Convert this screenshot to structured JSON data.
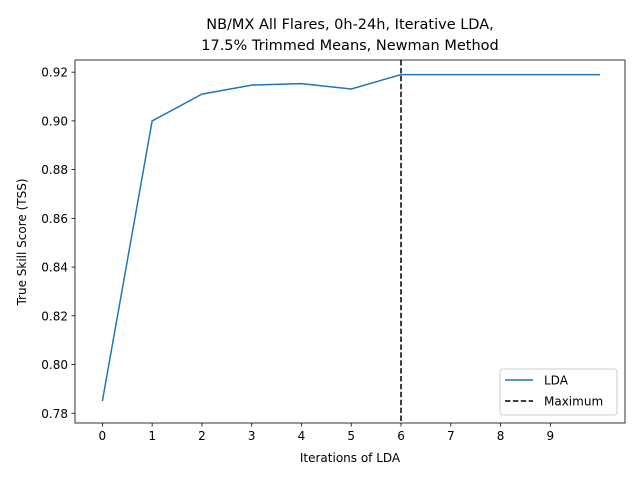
{
  "chart_data": {
    "type": "line",
    "title_lines": [
      "NB/MX All Flares, 0h-24h, Iterative LDA,",
      "17.5% Trimmed Means, Newman Method"
    ],
    "xlabel": "Iterations of LDA",
    "ylabel": "True Skill Score (TSS)",
    "xlim": [
      -0.55,
      10.5
    ],
    "ylim": [
      0.776,
      0.925
    ],
    "x_ticks": [
      0,
      1,
      2,
      3,
      4,
      5,
      6,
      7,
      8,
      9
    ],
    "y_ticks": [
      0.78,
      0.8,
      0.82,
      0.84,
      0.86,
      0.88,
      0.9,
      0.92
    ],
    "y_tick_labels": [
      "0.78",
      "0.80",
      "0.82",
      "0.84",
      "0.86",
      "0.88",
      "0.90",
      "0.92"
    ],
    "series": [
      {
        "name": "LDA",
        "color": "#1f77b4",
        "style": "solid",
        "x": [
          0,
          1,
          2,
          3,
          4,
          5,
          6,
          7,
          8,
          9,
          10
        ],
        "y": [
          0.785,
          0.9,
          0.911,
          0.9147,
          0.9153,
          0.9131,
          0.919,
          0.919,
          0.919,
          0.919,
          0.919
        ]
      }
    ],
    "vlines": [
      {
        "name": "Maximum",
        "x": 6,
        "color": "#000000",
        "style": "dashed"
      }
    ],
    "legend": {
      "placement": "lower-right",
      "entries": [
        {
          "label": "LDA",
          "color": "#1f77b4",
          "style": "solid"
        },
        {
          "label": "Maximum",
          "color": "#000000",
          "style": "dashed"
        }
      ]
    },
    "grid": false
  }
}
